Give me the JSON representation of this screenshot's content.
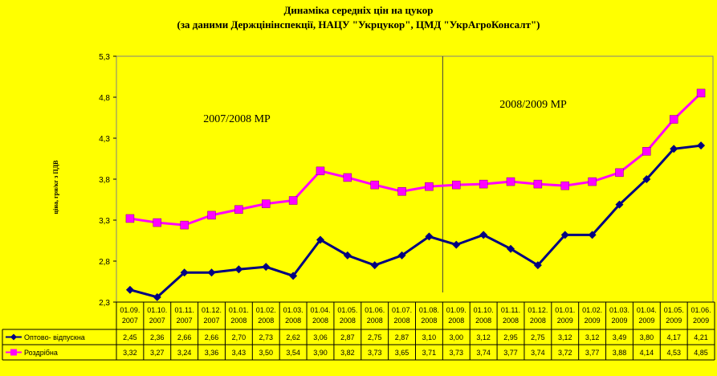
{
  "chart_data": {
    "type": "line",
    "title": "Динаміка середніх цін на цукор",
    "subtitle": "(за даними Держцінінспекції, НАЦУ \"Укрцукор\", ЦМД \"УкрАгроКонсалт\")",
    "ylabel": "ціна, грн/кг з ПДВ",
    "xlabel": "",
    "ylim": [
      2.3,
      5.3
    ],
    "yticks": [
      "2,3",
      "2,8",
      "3,3",
      "3,8",
      "4,3",
      "4,8",
      "5,3"
    ],
    "ytick_values": [
      2.3,
      2.8,
      3.3,
      3.8,
      4.3,
      4.8,
      5.3
    ],
    "categories": [
      [
        "01.09.",
        "2007"
      ],
      [
        "01.10.",
        "2007"
      ],
      [
        "01.11.",
        "2007"
      ],
      [
        "01.12.",
        "2007"
      ],
      [
        "01.01.",
        "2008"
      ],
      [
        "01.02.",
        "2008"
      ],
      [
        "01.03.",
        "2008"
      ],
      [
        "01.04.",
        "2008"
      ],
      [
        "01.05.",
        "2008"
      ],
      [
        "01.06.",
        "2008"
      ],
      [
        "01.07.",
        "2008"
      ],
      [
        "01.08.",
        "2008"
      ],
      [
        "01.09.",
        "2008"
      ],
      [
        "01.10.",
        "2008"
      ],
      [
        "01.11.",
        "2008"
      ],
      [
        "01.12.",
        "2008"
      ],
      [
        "01.01.",
        "2009"
      ],
      [
        "01.02.",
        "2009"
      ],
      [
        "01.03.",
        "2009"
      ],
      [
        "01.04.",
        "2009"
      ],
      [
        "01.05.",
        "2009"
      ],
      [
        "01.06.",
        "2009"
      ]
    ],
    "series": [
      {
        "name": "Оптово- відпускна",
        "color": "#000080",
        "marker": "diamond",
        "values": [
          2.45,
          2.36,
          2.66,
          2.66,
          2.7,
          2.73,
          2.62,
          3.06,
          2.87,
          2.75,
          2.87,
          3.1,
          3.0,
          3.12,
          2.95,
          2.75,
          3.12,
          3.12,
          3.49,
          3.8,
          4.17,
          4.21
        ],
        "labels": [
          "2,45",
          "2,36",
          "2,66",
          "2,66",
          "2,70",
          "2,73",
          "2,62",
          "3,06",
          "2,87",
          "2,75",
          "2,87",
          "3,10",
          "3,00",
          "3,12",
          "2,95",
          "2,75",
          "3,12",
          "3,12",
          "3,49",
          "3,80",
          "4,17",
          "4,21"
        ]
      },
      {
        "name": "Роздрібна",
        "color": "#ff00ff",
        "marker": "square",
        "values": [
          3.32,
          3.27,
          3.24,
          3.36,
          3.43,
          3.5,
          3.54,
          3.9,
          3.82,
          3.73,
          3.65,
          3.71,
          3.73,
          3.74,
          3.77,
          3.74,
          3.72,
          3.77,
          3.88,
          4.14,
          4.53,
          4.85
        ],
        "labels": [
          "3,32",
          "3,27",
          "3,24",
          "3,36",
          "3,43",
          "3,50",
          "3,54",
          "3,90",
          "3,82",
          "3,73",
          "3,65",
          "3,71",
          "3,73",
          "3,74",
          "3,77",
          "3,74",
          "3,72",
          "3,77",
          "3,88",
          "4,14",
          "4,53",
          "4,85"
        ]
      }
    ],
    "annotations": [
      "2007/2008 МР",
      "2008/2009 МР"
    ],
    "divider_after_category": 11,
    "data_table": true,
    "grid": false
  }
}
